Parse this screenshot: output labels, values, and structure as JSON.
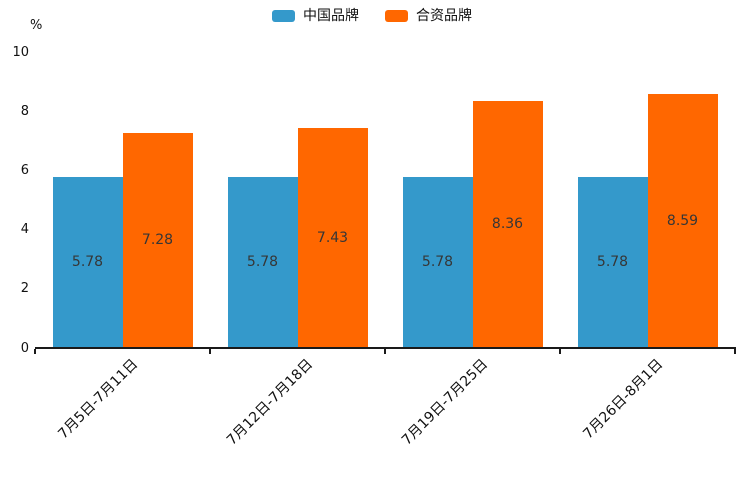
{
  "chart_data": {
    "type": "bar",
    "title": "",
    "xlabel": "",
    "ylabel": "%",
    "ylim": [
      0,
      10
    ],
    "yticks": [
      0,
      2,
      4,
      6,
      8,
      10
    ],
    "grid": "off",
    "legend_position": "top-center",
    "categories": [
      "7月5日-7月11日",
      "7月12日-7月18日",
      "7月19日-7月25日",
      "7月26日-8月1日"
    ],
    "series": [
      {
        "name": "中国品牌",
        "color": "#3499cb",
        "values": [
          5.78,
          5.78,
          5.78,
          5.78
        ]
      },
      {
        "name": "合资品牌",
        "color": "#ff6700",
        "values": [
          7.28,
          7.43,
          8.36,
          8.59
        ]
      }
    ],
    "value_label_decimals": 2,
    "value_label_color": "#363636",
    "axis_color": "#1a1a1a"
  }
}
